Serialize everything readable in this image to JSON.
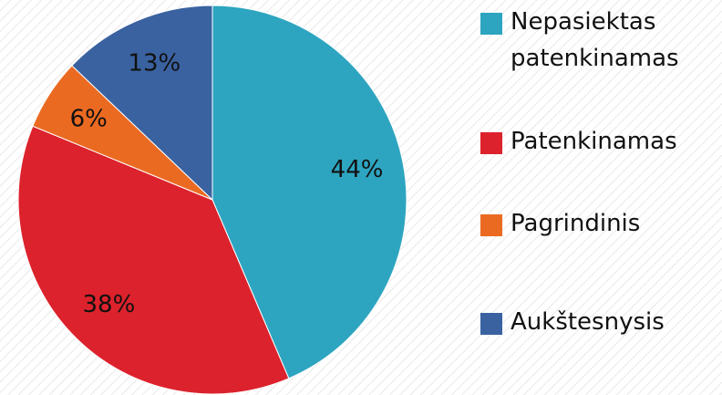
{
  "chart_data": {
    "type": "pie",
    "categories": [
      "Nepasiektas patenkinamas",
      "Patenkinamas",
      "Pagrindinis",
      "Aukštesnysis"
    ],
    "values": [
      44,
      38,
      6,
      13
    ],
    "value_labels": [
      "44%",
      "38%",
      "6%",
      "13%"
    ],
    "colors": [
      "#2ea5c0",
      "#dc222c",
      "#eb6a22",
      "#3a62a0"
    ],
    "legend": "right"
  }
}
